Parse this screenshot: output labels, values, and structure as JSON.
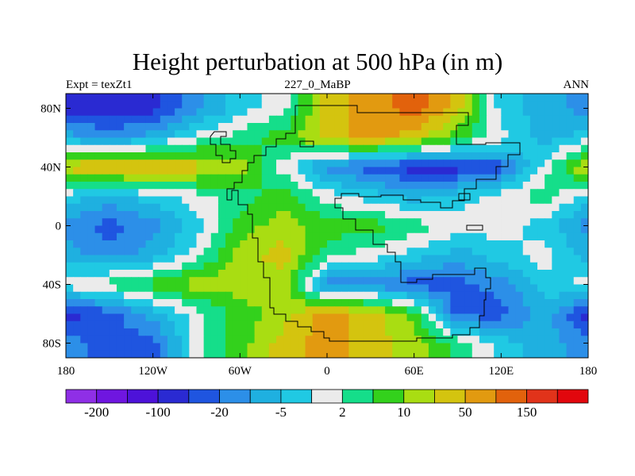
{
  "chart_data": {
    "type": "heatmap",
    "title": "Height perturbation at 500 hPa (in m)",
    "subtitle_left": "Expt = texZt1",
    "subtitle_center": "227_0_MaBP",
    "subtitle_right": "ANN",
    "x_ticks": [
      "180",
      "120W",
      "60W",
      "0",
      "60E",
      "120E",
      "180"
    ],
    "y_ticks": [
      "80N",
      "40N",
      "0",
      "40S",
      "80S"
    ],
    "xlim": [
      -180,
      180
    ],
    "ylim": [
      -90,
      90
    ],
    "colorbar": {
      "colors": [
        "#8f2fe6",
        "#6f16e0",
        "#4d12d9",
        "#2a2ad2",
        "#1f55e0",
        "#2c8fe8",
        "#1fb0e0",
        "#20c9e3",
        "#ebebeb",
        "#15de8a",
        "#33d11c",
        "#a9dd12",
        "#d4c40f",
        "#e29a10",
        "#e2620c",
        "#e1331a",
        "#e2070d"
      ],
      "labels": [
        "-200",
        "-100",
        "-20",
        "-5",
        "2",
        "10",
        "50",
        "150"
      ]
    },
    "field": {
      "lon": [
        -180,
        -150,
        -120,
        -90,
        -60,
        -30,
        0,
        30,
        60,
        90,
        120,
        150,
        180
      ],
      "lat": [
        80,
        60,
        40,
        20,
        0,
        -20,
        -40,
        -60,
        -80
      ],
      "level_index": [
        [
          3,
          3,
          3,
          5,
          7,
          8,
          12,
          13,
          14,
          12,
          7,
          6,
          5
        ],
        [
          6,
          5,
          6,
          8,
          9,
          10,
          12,
          13,
          12,
          10,
          8,
          6,
          7
        ],
        [
          12,
          13,
          13,
          12,
          11,
          8,
          5,
          4,
          3,
          3,
          4,
          8,
          12
        ],
        [
          7,
          6,
          7,
          8,
          9,
          10,
          8,
          7,
          6,
          7,
          8,
          9,
          7
        ],
        [
          5,
          4,
          5,
          7,
          10,
          11,
          10,
          10,
          9,
          8,
          8,
          7,
          5
        ],
        [
          6,
          5,
          6,
          8,
          11,
          12,
          9,
          8,
          7,
          6,
          7,
          8,
          6
        ],
        [
          8,
          9,
          10,
          11,
          11,
          11,
          5,
          5,
          4,
          4,
          5,
          7,
          8
        ],
        [
          3,
          4,
          6,
          8,
          10,
          11,
          13,
          12,
          10,
          4,
          4,
          6,
          3
        ],
        [
          5,
          4,
          4,
          8,
          10,
          12,
          13,
          12,
          11,
          9,
          7,
          6,
          5
        ]
      ]
    }
  }
}
